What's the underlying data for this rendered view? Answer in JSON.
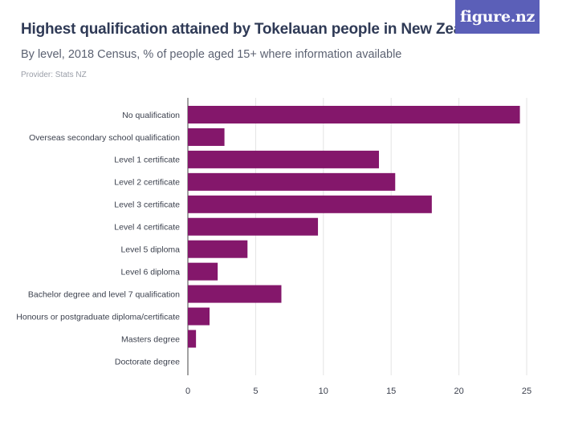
{
  "header": {
    "title": "Highest qualification attained by Tokelauan people in New Zealand",
    "subtitle": "By level, 2018 Census, % of people aged 15+ where information available",
    "provider": "Provider: Stats NZ",
    "logo_text": "figure.nz"
  },
  "colors": {
    "bar": "#84176b",
    "grid": "#e3e3e3",
    "axis": "#444444",
    "logo_bg": "#5b5fb8"
  },
  "chart_data": {
    "type": "bar",
    "orientation": "horizontal",
    "title": "Highest qualification attained by Tokelauan people in New Zealand",
    "subtitle": "By level, 2018 Census, % of people aged 15+ where information available",
    "xlabel": "",
    "ylabel": "",
    "xlim": [
      0,
      25
    ],
    "x_ticks": [
      0,
      5,
      10,
      15,
      20,
      25
    ],
    "grid": true,
    "categories": [
      "No qualification",
      "Overseas secondary school qualification",
      "Level 1 certificate",
      "Level 2 certificate",
      "Level 3 certificate",
      "Level 4 certificate",
      "Level 5 diploma",
      "Level 6 diploma",
      "Bachelor degree and level 7 qualification",
      "Honours or postgraduate diploma/certificate",
      "Masters degree",
      "Doctorate degree"
    ],
    "values": [
      24.5,
      2.7,
      14.1,
      15.3,
      18.0,
      9.6,
      4.4,
      2.2,
      6.9,
      1.6,
      0.6,
      0.0
    ]
  }
}
